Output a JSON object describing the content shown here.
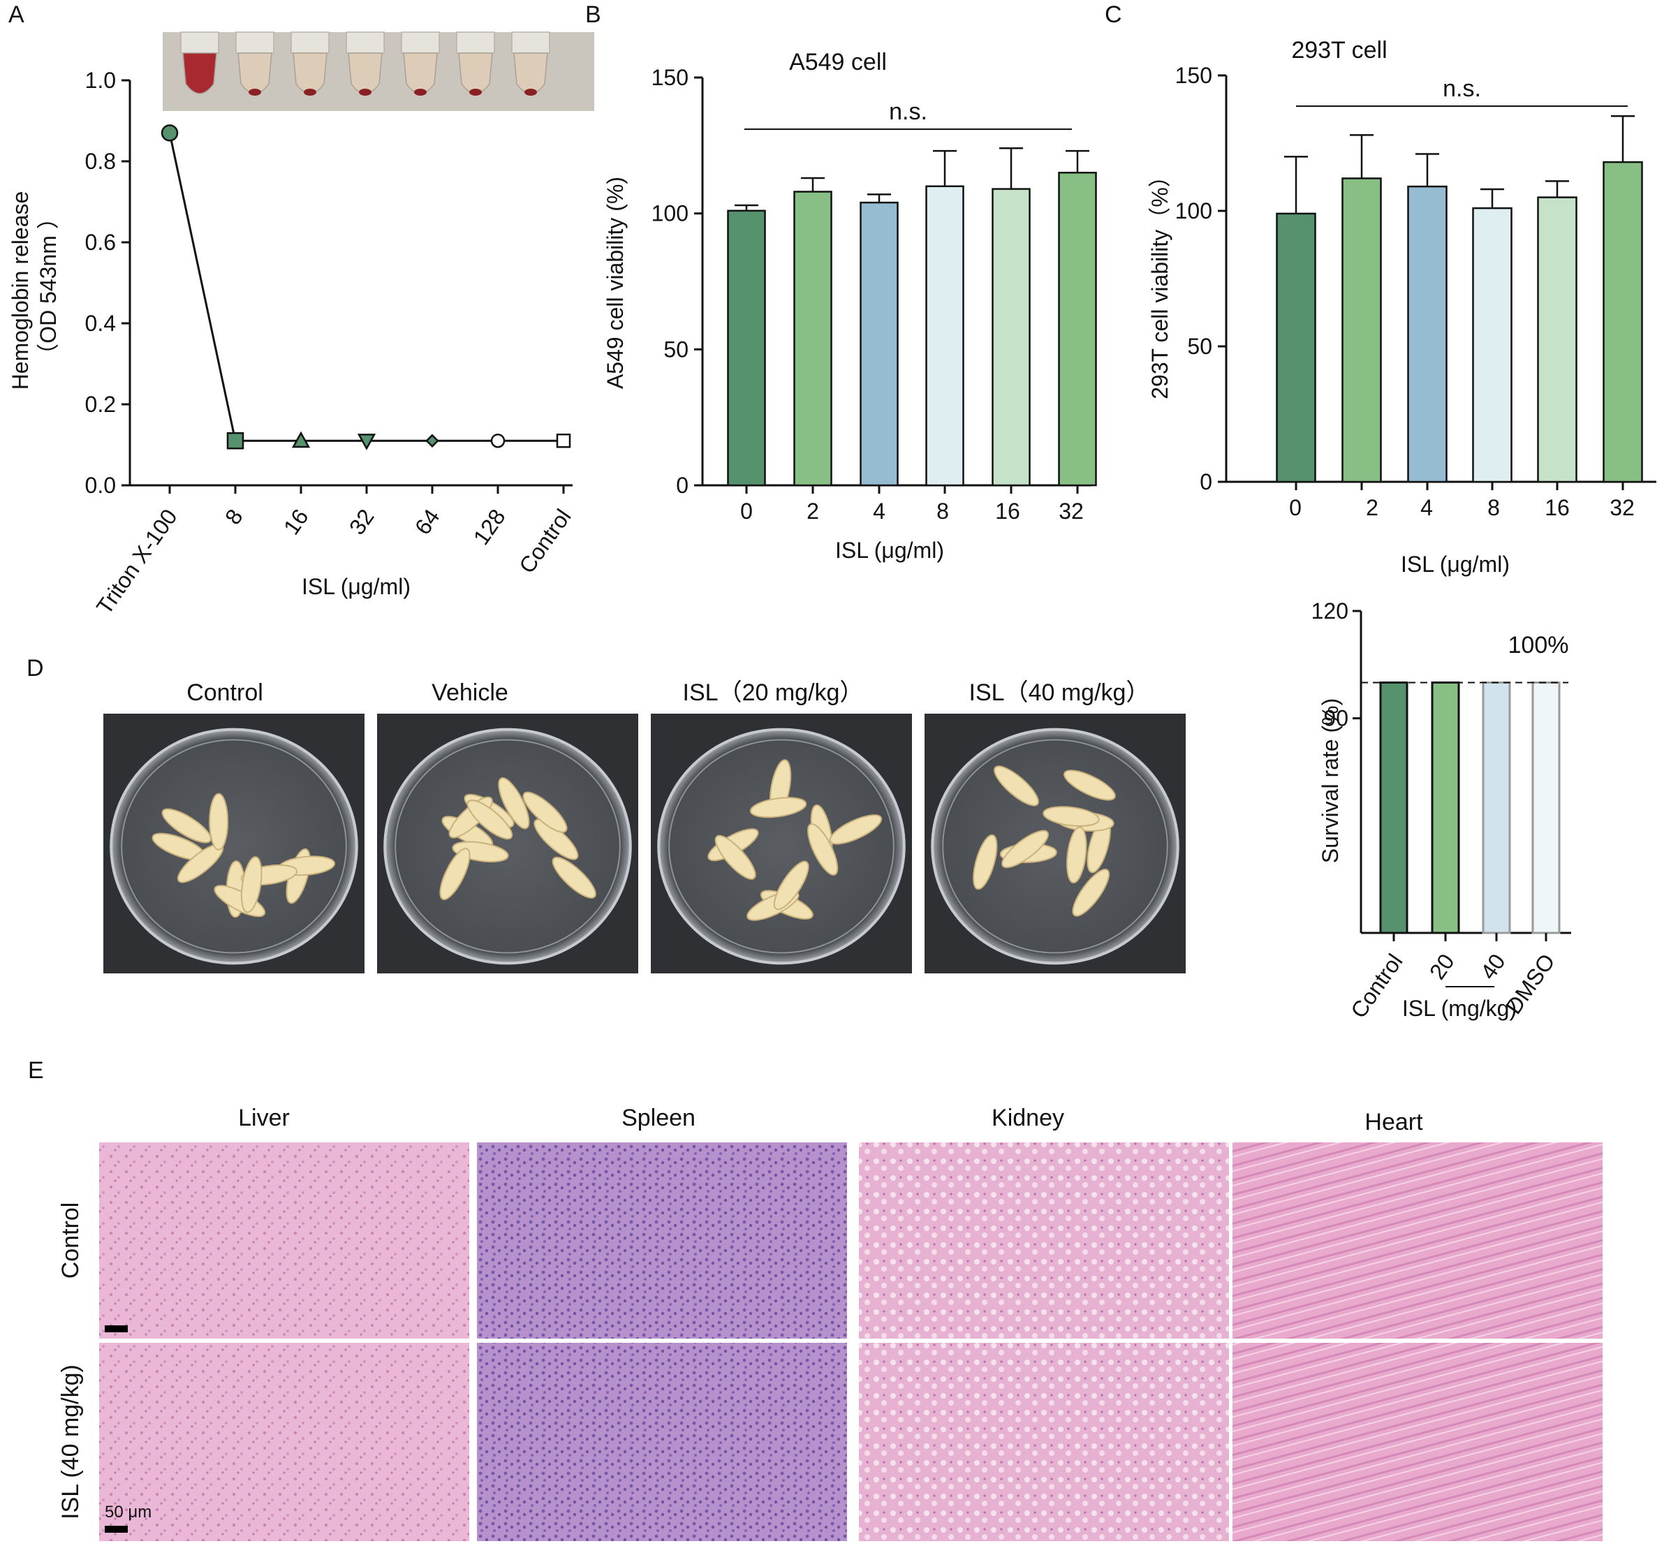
{
  "panel_labels": [
    "A",
    "B",
    "C",
    "D",
    "E"
  ],
  "colors": {
    "dark_green": "#55926d",
    "mid_green": "#88bf84",
    "blue": "#95bcd1",
    "pale_blue": "#dfeef1",
    "pale_green": "#c6e2c8",
    "light_blue_bar": "#d3e3ee",
    "dmso_bar": "#eef6fa",
    "axis": "#111111"
  },
  "chart_data": [
    {
      "id": "A",
      "type": "line",
      "title": "",
      "xlabel": "ISL (μg/ml)",
      "ylabel": "Hemoglobin release",
      "ylabel2": "（OD 543nm ）",
      "categories": [
        "Triton X-100",
        "8",
        "16",
        "32",
        "64",
        "128",
        "Control"
      ],
      "values": [
        0.87,
        0.11,
        0.11,
        0.11,
        0.11,
        0.11,
        0.11
      ],
      "markers": [
        "circle",
        "square",
        "triangle-up",
        "triangle-down",
        "diamond",
        "circle-open",
        "square-open"
      ],
      "ylim": [
        0,
        1.0
      ],
      "yticks": [
        "0.0",
        "0.2",
        "0.4",
        "0.6",
        "0.8",
        "1.0"
      ],
      "grid": false,
      "inset_photo": "red blood cell hemolysis tubes"
    },
    {
      "id": "B",
      "type": "bar",
      "title": "A549 cell",
      "xlabel": "ISL (μg/ml)",
      "ylabel": "A549 cell viability (%)",
      "categories": [
        "0",
        "2",
        "4",
        "8",
        "16",
        "32"
      ],
      "values": [
        101,
        108,
        104,
        110,
        109,
        115
      ],
      "errors": [
        2,
        5,
        3,
        13,
        15,
        8
      ],
      "ylim": [
        0,
        150
      ],
      "yticks": [
        "0",
        "50",
        "100",
        "150"
      ],
      "annotation": "n.s.",
      "grid": false
    },
    {
      "id": "C",
      "type": "bar",
      "title": "293T cell",
      "xlabel": "ISL (μg/ml)",
      "ylabel": "293T cell viability（%）",
      "categories": [
        "0",
        "2",
        "4",
        "8",
        "16",
        "32"
      ],
      "values": [
        99,
        112,
        109,
        101,
        105,
        118
      ],
      "errors": [
        21,
        16,
        12,
        7,
        6,
        17
      ],
      "ylim": [
        0,
        150
      ],
      "yticks": [
        "0",
        "50",
        "100",
        "150"
      ],
      "annotation": "n.s.",
      "grid": false
    },
    {
      "id": "D-survival",
      "type": "bar",
      "title": "",
      "xlabel": "ISL (mg/kg)",
      "ylabel": "Survival rate (%)",
      "categories": [
        "Control",
        "20",
        "40",
        "DMSO"
      ],
      "values": [
        100,
        100,
        100,
        100
      ],
      "ylim": [
        30,
        120
      ],
      "yticks": [
        "90",
        "120"
      ],
      "reference_label": "100%",
      "grid": false
    }
  ],
  "panel_d": {
    "photo_labels": [
      "Control",
      "Vehicle",
      "ISL（20 mg/kg）",
      "ISL（40 mg/kg）"
    ],
    "photo_subject": "Galleria mellonella larvae in petri dishes"
  },
  "panel_e": {
    "column_labels": [
      "Liver",
      "Spleen",
      "Kidney",
      "Heart"
    ],
    "row_labels": [
      "Control",
      "ISL (40 mg/kg)"
    ],
    "scale_bar": "50 μm"
  }
}
